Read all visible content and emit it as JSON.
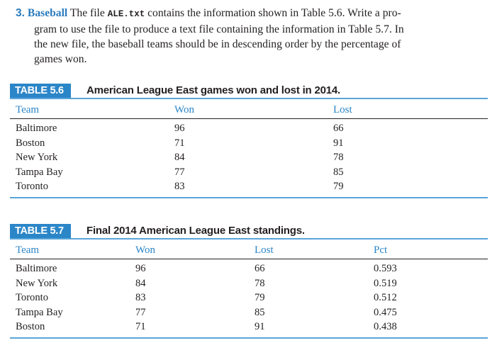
{
  "exercise": {
    "number": "3.",
    "title": "Baseball",
    "text_before_file": " The file ",
    "file_name": "ALE.txt",
    "line1_rest": " contains the information shown in Table 5.6. Write a pro-",
    "line2": "gram to use the file to produce a text file containing the information in Table 5.7. In",
    "line3": "the new file, the baseball teams should be in descending order by the percentage of",
    "line4": "games won."
  },
  "table1": {
    "label": "TABLE 5.6",
    "title": "American League East games won and lost in 2014.",
    "headers": [
      "Team",
      "Won",
      "Lost"
    ],
    "rows": [
      [
        "Baltimore",
        "96",
        "66"
      ],
      [
        "Boston",
        "71",
        "91"
      ],
      [
        "New York",
        "84",
        "78"
      ],
      [
        "Tampa Bay",
        "77",
        "85"
      ],
      [
        "Toronto",
        "83",
        "79"
      ]
    ]
  },
  "table2": {
    "label": "TABLE 5.7",
    "title": "Final 2014 American League East standings.",
    "headers": [
      "Team",
      "Won",
      "Lost",
      "Pct"
    ],
    "rows": [
      [
        "Baltimore",
        "96",
        "66",
        "0.593"
      ],
      [
        "New York",
        "84",
        "78",
        "0.519"
      ],
      [
        "Toronto",
        "83",
        "79",
        "0.512"
      ],
      [
        "Tampa Bay",
        "77",
        "85",
        "0.475"
      ],
      [
        "Boston",
        "71",
        "91",
        "0.438"
      ]
    ]
  }
}
